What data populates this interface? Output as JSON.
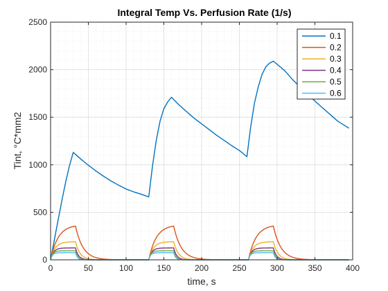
{
  "chart_data": {
    "type": "line",
    "title": "Integral Temp Vs. Perfusion Rate (1/s)",
    "xlabel": "time, s",
    "ylabel": "Tint, °C*mm2",
    "xlim": [
      0,
      400
    ],
    "ylim": [
      0,
      2500
    ],
    "x_ticks": [
      "0",
      "50",
      "100",
      "150",
      "200",
      "250",
      "300",
      "350",
      "400"
    ],
    "y_ticks": [
      "0",
      "500",
      "1000",
      "1500",
      "2000",
      "2500"
    ],
    "grid": "major and minor",
    "legend_position": "top-right",
    "series": [
      {
        "name": "0.1",
        "color": "#0072BD",
        "points": [
          [
            0,
            0
          ],
          [
            5,
            210
          ],
          [
            10,
            420
          ],
          [
            15,
            625
          ],
          [
            20,
            820
          ],
          [
            25,
            990
          ],
          [
            30,
            1130
          ],
          [
            40,
            1060
          ],
          [
            50,
            995
          ],
          [
            60,
            935
          ],
          [
            70,
            880
          ],
          [
            80,
            830
          ],
          [
            90,
            785
          ],
          [
            100,
            745
          ],
          [
            110,
            715
          ],
          [
            120,
            690
          ],
          [
            130,
            662
          ],
          [
            135,
            990
          ],
          [
            140,
            1260
          ],
          [
            145,
            1460
          ],
          [
            150,
            1590
          ],
          [
            155,
            1660
          ],
          [
            160,
            1710
          ],
          [
            170,
            1630
          ],
          [
            180,
            1560
          ],
          [
            190,
            1490
          ],
          [
            200,
            1430
          ],
          [
            210,
            1370
          ],
          [
            220,
            1310
          ],
          [
            230,
            1255
          ],
          [
            240,
            1200
          ],
          [
            250,
            1150
          ],
          [
            260,
            1085
          ],
          [
            265,
            1400
          ],
          [
            270,
            1650
          ],
          [
            275,
            1820
          ],
          [
            280,
            1950
          ],
          [
            285,
            2030
          ],
          [
            290,
            2070
          ],
          [
            295,
            2090
          ],
          [
            310,
            1990
          ],
          [
            320,
            1900
          ],
          [
            330,
            1820
          ],
          [
            340,
            1740
          ],
          [
            350,
            1670
          ],
          [
            360,
            1600
          ],
          [
            370,
            1530
          ],
          [
            380,
            1460
          ],
          [
            390,
            1410
          ],
          [
            395,
            1385
          ]
        ]
      },
      {
        "name": "0.2",
        "color": "#D95319",
        "pulse_starts": [
          0,
          130,
          262
        ],
        "pulse_duration": 33,
        "peak": 355,
        "rise_tau": 10,
        "decay_tau": 10
      },
      {
        "name": "0.3",
        "color": "#EDB120",
        "pulse_starts": [
          0,
          130,
          262
        ],
        "pulse_duration": 33,
        "peak": 190,
        "rise_tau": 6,
        "decay_tau": 6
      },
      {
        "name": "0.4",
        "color": "#7E2F8E",
        "pulse_starts": [
          0,
          130,
          262
        ],
        "pulse_duration": 33,
        "peak": 125,
        "rise_tau": 4,
        "decay_tau": 4
      },
      {
        "name": "0.5",
        "color": "#77AC30",
        "pulse_starts": [
          0,
          130,
          262
        ],
        "pulse_duration": 33,
        "peak": 95,
        "rise_tau": 3,
        "decay_tau": 3
      },
      {
        "name": "0.6",
        "color": "#4DBEEE",
        "pulse_starts": [
          0,
          130,
          262
        ],
        "pulse_duration": 33,
        "peak": 75,
        "rise_tau": 2.5,
        "decay_tau": 2.5
      }
    ]
  }
}
